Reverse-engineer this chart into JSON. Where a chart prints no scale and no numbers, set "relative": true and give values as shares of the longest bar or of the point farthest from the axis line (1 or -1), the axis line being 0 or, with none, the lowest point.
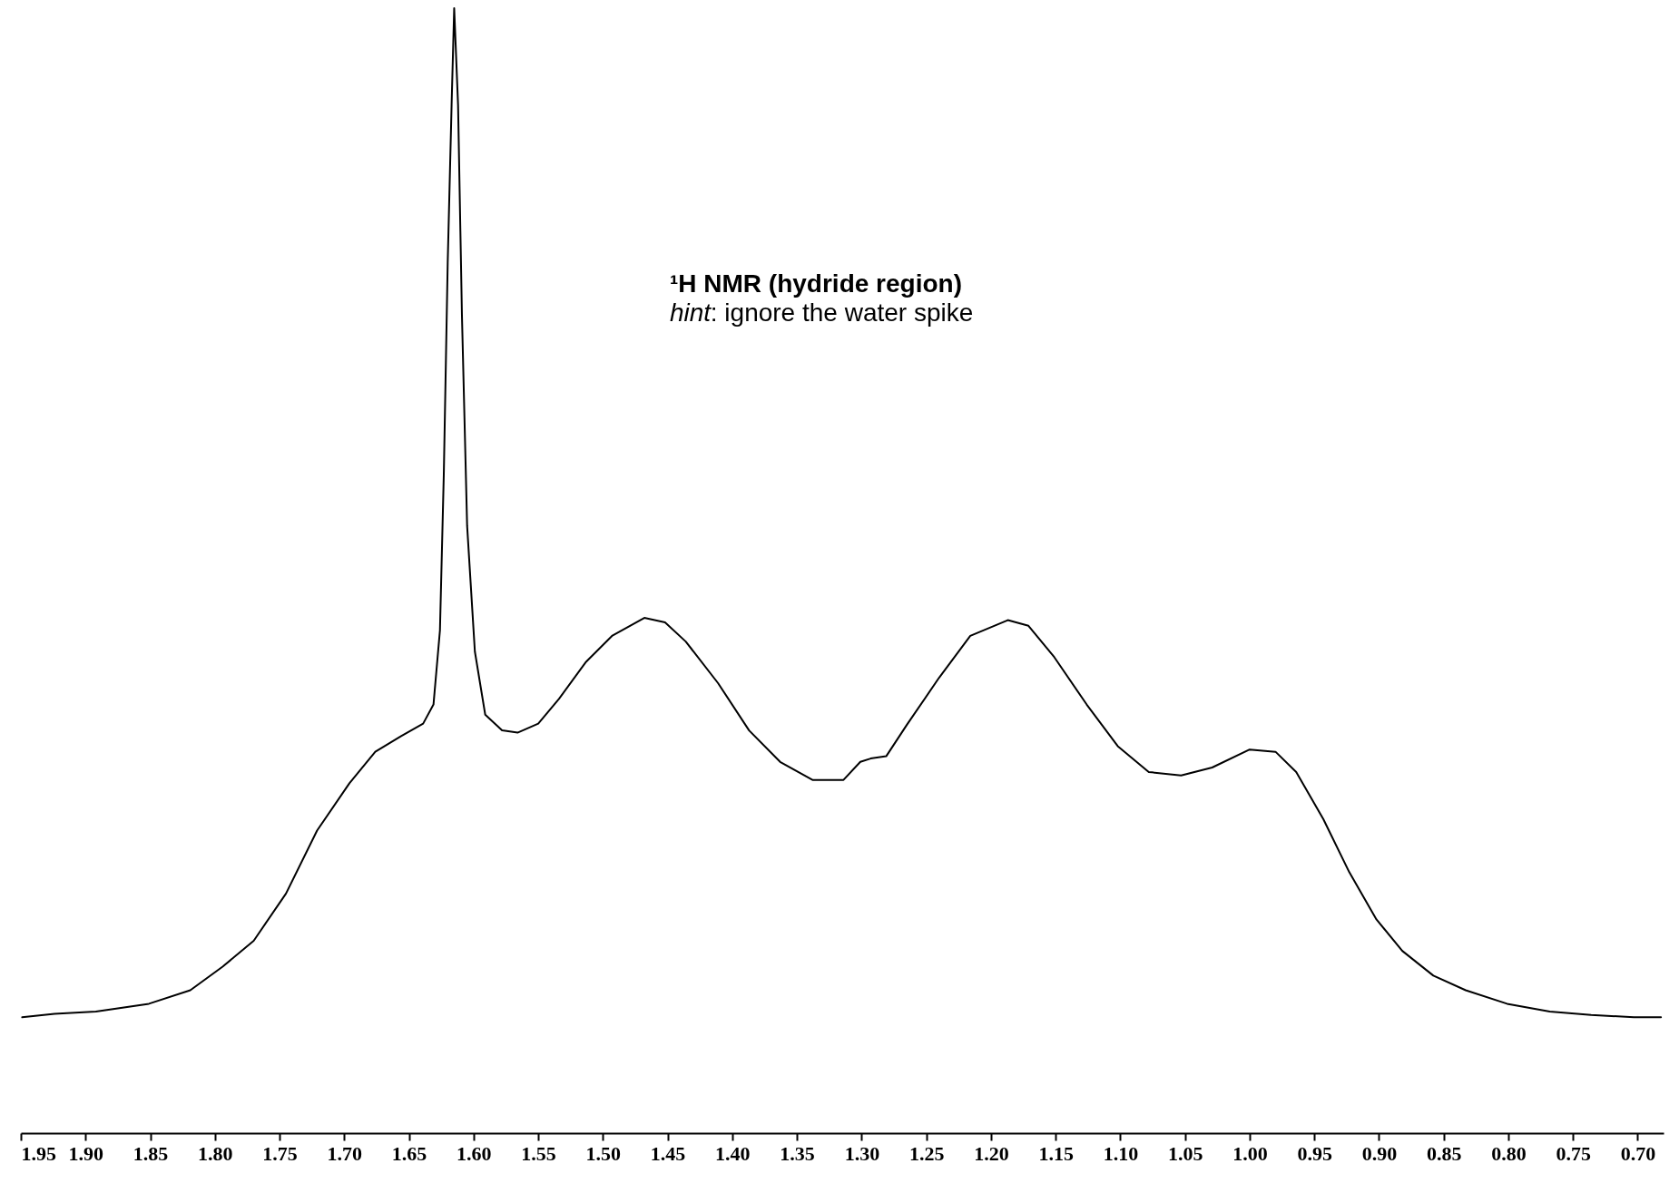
{
  "chart_data": {
    "type": "line",
    "title": "¹H NMR (hydride region)",
    "annotations": [
      "hint: ignore the water spike"
    ],
    "relative": true,
    "grid": false,
    "marker": "none",
    "line_style": "solid",
    "xlim": [
      1.95,
      0.68
    ],
    "xticks": [
      {
        "value": 1.95,
        "label": "1.95"
      },
      {
        "value": 1.9,
        "label": "1.90"
      },
      {
        "value": 1.85,
        "label": "1.85"
      },
      {
        "value": 1.8,
        "label": "1.80"
      },
      {
        "value": 1.75,
        "label": "1.75"
      },
      {
        "value": 1.7,
        "label": "1.70"
      },
      {
        "value": 1.65,
        "label": "1.65"
      },
      {
        "value": 1.6,
        "label": "1.60"
      },
      {
        "value": 1.55,
        "label": "1.55"
      },
      {
        "value": 1.5,
        "label": "1.50"
      },
      {
        "value": 1.45,
        "label": "1.45"
      },
      {
        "value": 1.4,
        "label": "1.40"
      },
      {
        "value": 1.35,
        "label": "1.35"
      },
      {
        "value": 1.3,
        "label": "1.30"
      },
      {
        "value": 1.25,
        "label": "1.25"
      },
      {
        "value": 1.2,
        "label": "1.20"
      },
      {
        "value": 1.15,
        "label": "1.15"
      },
      {
        "value": 1.1,
        "label": "1.10"
      },
      {
        "value": 1.05,
        "label": "1.05"
      },
      {
        "value": 1.0,
        "label": "1.00"
      },
      {
        "value": 0.95,
        "label": "0.95"
      },
      {
        "value": 0.9,
        "label": "0.90"
      },
      {
        "value": 0.85,
        "label": "0.85"
      },
      {
        "value": 0.8,
        "label": "0.80"
      },
      {
        "value": 0.75,
        "label": "0.75"
      },
      {
        "value": 0.7,
        "label": "0.70"
      }
    ],
    "series": [
      {
        "color": "#000000",
        "x": [
          1.949,
          1.924,
          1.892,
          1.851,
          1.819,
          1.794,
          1.77,
          1.745,
          1.721,
          1.696,
          1.676,
          1.656,
          1.639,
          1.631,
          1.626,
          1.623,
          1.62,
          1.617,
          1.615,
          1.612,
          1.609,
          1.605,
          1.599,
          1.591,
          1.578,
          1.566,
          1.55,
          1.534,
          1.513,
          1.493,
          1.468,
          1.452,
          1.436,
          1.411,
          1.387,
          1.363,
          1.338,
          1.314,
          1.301,
          1.293,
          1.281,
          1.265,
          1.24,
          1.216,
          1.187,
          1.171,
          1.151,
          1.126,
          1.102,
          1.078,
          1.053,
          1.029,
          1.0,
          0.98,
          0.964,
          0.943,
          0.923,
          0.902,
          0.882,
          0.858,
          0.833,
          0.801,
          0.768,
          0.736,
          0.703,
          0.682
        ],
        "values": [
          0.103,
          0.106,
          0.108,
          0.115,
          0.127,
          0.148,
          0.171,
          0.213,
          0.269,
          0.311,
          0.339,
          0.353,
          0.364,
          0.381,
          0.447,
          0.587,
          0.774,
          0.914,
          1.0,
          0.914,
          0.727,
          0.54,
          0.428,
          0.372,
          0.358,
          0.356,
          0.364,
          0.386,
          0.419,
          0.442,
          0.458,
          0.454,
          0.437,
          0.4,
          0.358,
          0.33,
          0.314,
          0.314,
          0.33,
          0.333,
          0.335,
          0.363,
          0.405,
          0.442,
          0.456,
          0.451,
          0.423,
          0.381,
          0.344,
          0.321,
          0.318,
          0.325,
          0.341,
          0.339,
          0.321,
          0.279,
          0.232,
          0.19,
          0.162,
          0.14,
          0.127,
          0.115,
          0.108,
          0.105,
          0.103,
          0.103
        ]
      }
    ]
  }
}
